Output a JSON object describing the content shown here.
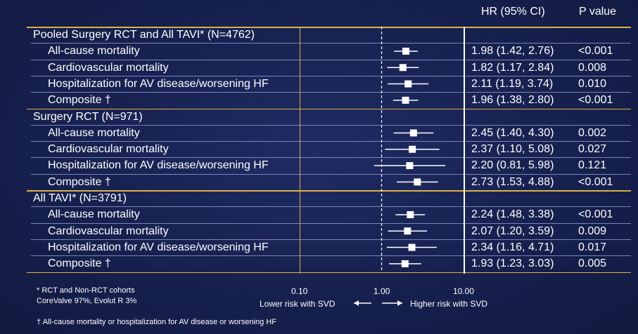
{
  "header": {
    "hr_label": "HR (95% CI)",
    "p_label": "P value"
  },
  "chart_data": {
    "type": "forest",
    "x_scale": "log",
    "xlim": [
      0.1,
      10
    ],
    "ticks": [
      "0.10",
      "1.00",
      "10.00"
    ],
    "reference_line": 1.0,
    "left_label": "Lower risk with SVD",
    "right_label": "Higher risk with SVD",
    "groups": [
      {
        "title": "Pooled Surgery RCT and All TAVI* (N=4762)",
        "rows": [
          {
            "label": "All-cause mortality",
            "hr": 1.98,
            "lo": 1.42,
            "hi": 2.76,
            "hr_text": "1.98 (1.42, 2.76)",
            "p": "<0.001"
          },
          {
            "label": "Cardiovascular mortality",
            "hr": 1.82,
            "lo": 1.17,
            "hi": 2.84,
            "hr_text": "1.82 (1.17, 2.84)",
            "p": "0.008"
          },
          {
            "label": "Hospitalization for AV disease/worsening HF",
            "hr": 2.11,
            "lo": 1.19,
            "hi": 3.74,
            "hr_text": "2.11 (1.19, 3.74)",
            "p": "0.010"
          },
          {
            "label": "Composite †",
            "hr": 1.96,
            "lo": 1.38,
            "hi": 2.8,
            "hr_text": "1.96 (1.38, 2.80)",
            "p": "<0.001"
          }
        ]
      },
      {
        "title": "Surgery RCT (N=971)",
        "rows": [
          {
            "label": "All-cause mortality",
            "hr": 2.45,
            "lo": 1.4,
            "hi": 4.3,
            "hr_text": "2.45 (1.40, 4.30)",
            "p": "0.002"
          },
          {
            "label": "Cardiovascular mortality",
            "hr": 2.37,
            "lo": 1.1,
            "hi": 5.08,
            "hr_text": "2.37 (1.10, 5.08)",
            "p": "0.027"
          },
          {
            "label": "Hospitalization for AV disease/worsening HF",
            "hr": 2.2,
            "lo": 0.81,
            "hi": 5.98,
            "hr_text": "2.20 (0.81, 5.98)",
            "p": "0.121"
          },
          {
            "label": "Composite †",
            "hr": 2.73,
            "lo": 1.53,
            "hi": 4.88,
            "hr_text": "2.73 (1.53, 4.88)",
            "p": "<0.001"
          }
        ]
      },
      {
        "title": "All TAVI* (N=3791)",
        "rows": [
          {
            "label": "All-cause mortality",
            "hr": 2.24,
            "lo": 1.48,
            "hi": 3.38,
            "hr_text": "2.24 (1.48, 3.38)",
            "p": "<0.001"
          },
          {
            "label": "Cardiovascular mortality",
            "hr": 2.07,
            "lo": 1.2,
            "hi": 3.59,
            "hr_text": "2.07 (1.20, 3.59)",
            "p": "0.009"
          },
          {
            "label": "Hospitalization for AV disease/worsening HF",
            "hr": 2.34,
            "lo": 1.16,
            "hi": 4.71,
            "hr_text": "2.34 (1.16, 4.71)",
            "p": "0.017"
          },
          {
            "label": "Composite †",
            "hr": 1.93,
            "lo": 1.23,
            "hi": 3.03,
            "hr_text": "1.93 (1.23, 3.03)",
            "p": "0.005"
          }
        ]
      }
    ]
  },
  "footnotes": {
    "line1": "* RCT and Non-RCT cohorts",
    "line2": "CoreValve 97%, Evolut R 3%",
    "line3": "† All-cause mortality or hospitalization for AV disease or worsening HF"
  }
}
